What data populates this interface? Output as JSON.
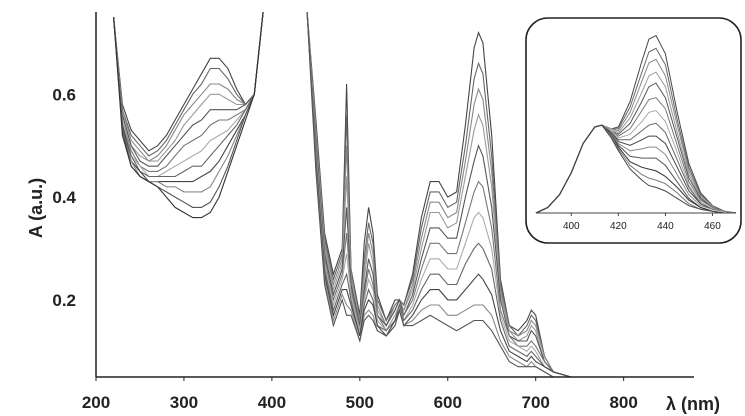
{
  "chart_data": [
    {
      "type": "line",
      "xlabel": "λ (nm)",
      "ylabel": "A (a.u.)",
      "xlim": [
        200,
        880
      ],
      "ylim": [
        0.05,
        0.76
      ],
      "x_ticks": [
        200,
        300,
        400,
        500,
        600,
        700,
        800
      ],
      "x_tick_labels": [
        "200",
        "300",
        "400",
        "500",
        "600",
        "700",
        "800"
      ],
      "y_ticks": [
        0.2,
        0.4,
        0.6
      ],
      "y_tick_labels": [
        "0.2",
        "0.4",
        "0.6"
      ],
      "grid": false,
      "line_color": "#555555",
      "uv_region": {
        "x": [
          220,
          230,
          240,
          250,
          260,
          270,
          280,
          290,
          300,
          310,
          320,
          330,
          340,
          350,
          360,
          370,
          380,
          390
        ],
        "curves": [
          [
            0.75,
            0.58,
            0.53,
            0.51,
            0.49,
            0.5,
            0.52,
            0.55,
            0.58,
            0.61,
            0.64,
            0.67,
            0.67,
            0.65,
            0.61,
            0.58,
            0.6,
            0.76
          ],
          [
            0.75,
            0.57,
            0.52,
            0.5,
            0.48,
            0.49,
            0.51,
            0.54,
            0.57,
            0.6,
            0.62,
            0.65,
            0.65,
            0.63,
            0.6,
            0.58,
            0.6,
            0.76
          ],
          [
            0.75,
            0.57,
            0.51,
            0.49,
            0.47,
            0.48,
            0.5,
            0.53,
            0.56,
            0.58,
            0.6,
            0.62,
            0.62,
            0.61,
            0.59,
            0.58,
            0.6,
            0.76
          ],
          [
            0.75,
            0.56,
            0.5,
            0.48,
            0.47,
            0.47,
            0.49,
            0.51,
            0.54,
            0.56,
            0.58,
            0.6,
            0.6,
            0.59,
            0.58,
            0.58,
            0.6,
            0.76
          ],
          [
            0.75,
            0.56,
            0.5,
            0.47,
            0.46,
            0.46,
            0.48,
            0.5,
            0.52,
            0.54,
            0.55,
            0.57,
            0.57,
            0.57,
            0.57,
            0.58,
            0.6,
            0.76
          ],
          [
            0.75,
            0.55,
            0.49,
            0.46,
            0.45,
            0.45,
            0.46,
            0.48,
            0.5,
            0.51,
            0.52,
            0.54,
            0.55,
            0.55,
            0.56,
            0.57,
            0.6,
            0.76
          ],
          [
            0.75,
            0.55,
            0.48,
            0.46,
            0.44,
            0.44,
            0.45,
            0.46,
            0.47,
            0.48,
            0.49,
            0.51,
            0.52,
            0.53,
            0.55,
            0.57,
            0.6,
            0.76
          ],
          [
            0.75,
            0.54,
            0.48,
            0.45,
            0.44,
            0.44,
            0.44,
            0.44,
            0.45,
            0.46,
            0.46,
            0.48,
            0.5,
            0.52,
            0.54,
            0.57,
            0.6,
            0.76
          ],
          [
            0.75,
            0.54,
            0.47,
            0.45,
            0.43,
            0.43,
            0.43,
            0.43,
            0.43,
            0.43,
            0.44,
            0.45,
            0.47,
            0.5,
            0.53,
            0.56,
            0.6,
            0.76
          ],
          [
            0.75,
            0.53,
            0.47,
            0.44,
            0.43,
            0.43,
            0.42,
            0.42,
            0.41,
            0.41,
            0.41,
            0.42,
            0.45,
            0.48,
            0.52,
            0.56,
            0.6,
            0.76
          ],
          [
            0.75,
            0.53,
            0.46,
            0.44,
            0.43,
            0.42,
            0.41,
            0.4,
            0.39,
            0.38,
            0.38,
            0.39,
            0.42,
            0.46,
            0.51,
            0.56,
            0.6,
            0.76
          ],
          [
            0.75,
            0.52,
            0.46,
            0.44,
            0.43,
            0.42,
            0.4,
            0.38,
            0.37,
            0.36,
            0.36,
            0.37,
            0.4,
            0.45,
            0.5,
            0.55,
            0.6,
            0.76
          ]
        ]
      },
      "vis_region": {
        "x": [
          440,
          450,
          460,
          470,
          480,
          485,
          490,
          500,
          505,
          510,
          515,
          520,
          530,
          540,
          545,
          550,
          560,
          570,
          580,
          590,
          600,
          610,
          620,
          630,
          635,
          640,
          650,
          660,
          670,
          680,
          690,
          695,
          700,
          710,
          720,
          740,
          760,
          800,
          840,
          860
        ],
        "curves": [
          [
            0.76,
            0.55,
            0.33,
            0.25,
            0.3,
            0.62,
            0.26,
            0.17,
            0.31,
            0.38,
            0.33,
            0.21,
            0.16,
            0.2,
            0.2,
            0.19,
            0.25,
            0.36,
            0.43,
            0.43,
            0.4,
            0.41,
            0.54,
            0.69,
            0.72,
            0.7,
            0.52,
            0.24,
            0.15,
            0.14,
            0.16,
            0.18,
            0.17,
            0.09,
            0.06,
            0.05,
            0.046,
            0.044,
            0.044,
            0.045
          ],
          [
            0.76,
            0.54,
            0.32,
            0.24,
            0.29,
            0.56,
            0.26,
            0.16,
            0.28,
            0.35,
            0.31,
            0.2,
            0.16,
            0.19,
            0.2,
            0.19,
            0.24,
            0.34,
            0.41,
            0.41,
            0.38,
            0.39,
            0.5,
            0.63,
            0.66,
            0.64,
            0.48,
            0.23,
            0.15,
            0.13,
            0.15,
            0.17,
            0.16,
            0.09,
            0.06,
            0.05,
            0.046,
            0.044,
            0.044,
            0.045
          ],
          [
            0.76,
            0.53,
            0.31,
            0.23,
            0.28,
            0.5,
            0.25,
            0.16,
            0.26,
            0.33,
            0.29,
            0.19,
            0.15,
            0.19,
            0.2,
            0.18,
            0.23,
            0.32,
            0.39,
            0.39,
            0.36,
            0.37,
            0.47,
            0.58,
            0.61,
            0.59,
            0.45,
            0.22,
            0.14,
            0.13,
            0.14,
            0.16,
            0.15,
            0.09,
            0.06,
            0.05,
            0.046,
            0.044,
            0.044,
            0.045
          ],
          [
            0.76,
            0.52,
            0.3,
            0.22,
            0.27,
            0.44,
            0.24,
            0.15,
            0.24,
            0.31,
            0.27,
            0.18,
            0.15,
            0.18,
            0.2,
            0.18,
            0.22,
            0.3,
            0.37,
            0.37,
            0.34,
            0.35,
            0.44,
            0.53,
            0.56,
            0.54,
            0.42,
            0.21,
            0.14,
            0.12,
            0.13,
            0.15,
            0.14,
            0.08,
            0.06,
            0.05,
            0.046,
            0.044,
            0.044,
            0.045
          ],
          [
            0.76,
            0.51,
            0.29,
            0.21,
            0.26,
            0.38,
            0.23,
            0.15,
            0.22,
            0.28,
            0.25,
            0.17,
            0.15,
            0.18,
            0.2,
            0.17,
            0.21,
            0.28,
            0.34,
            0.34,
            0.32,
            0.32,
            0.4,
            0.47,
            0.5,
            0.48,
            0.38,
            0.2,
            0.13,
            0.12,
            0.12,
            0.14,
            0.13,
            0.08,
            0.06,
            0.05,
            0.046,
            0.044,
            0.044,
            0.045
          ],
          [
            0.76,
            0.5,
            0.28,
            0.2,
            0.25,
            0.33,
            0.22,
            0.14,
            0.21,
            0.26,
            0.23,
            0.17,
            0.14,
            0.17,
            0.19,
            0.17,
            0.2,
            0.26,
            0.31,
            0.31,
            0.29,
            0.29,
            0.35,
            0.41,
            0.43,
            0.42,
            0.34,
            0.18,
            0.13,
            0.11,
            0.11,
            0.12,
            0.11,
            0.08,
            0.06,
            0.05,
            0.046,
            0.044,
            0.044,
            0.045
          ],
          [
            0.76,
            0.49,
            0.27,
            0.19,
            0.24,
            0.29,
            0.21,
            0.14,
            0.2,
            0.24,
            0.22,
            0.16,
            0.14,
            0.17,
            0.19,
            0.16,
            0.19,
            0.24,
            0.28,
            0.28,
            0.26,
            0.26,
            0.31,
            0.36,
            0.37,
            0.36,
            0.3,
            0.17,
            0.12,
            0.11,
            0.1,
            0.11,
            0.1,
            0.07,
            0.06,
            0.05,
            0.046,
            0.044,
            0.044,
            0.045
          ],
          [
            0.76,
            0.48,
            0.26,
            0.18,
            0.23,
            0.25,
            0.2,
            0.13,
            0.19,
            0.22,
            0.2,
            0.15,
            0.14,
            0.16,
            0.19,
            0.16,
            0.18,
            0.22,
            0.25,
            0.25,
            0.23,
            0.23,
            0.27,
            0.3,
            0.31,
            0.3,
            0.26,
            0.16,
            0.11,
            0.1,
            0.09,
            0.1,
            0.09,
            0.07,
            0.06,
            0.05,
            0.046,
            0.044,
            0.044,
            0.045
          ],
          [
            0.76,
            0.47,
            0.25,
            0.17,
            0.22,
            0.22,
            0.19,
            0.13,
            0.18,
            0.2,
            0.19,
            0.15,
            0.13,
            0.16,
            0.18,
            0.15,
            0.17,
            0.2,
            0.22,
            0.22,
            0.2,
            0.2,
            0.22,
            0.24,
            0.25,
            0.24,
            0.21,
            0.14,
            0.1,
            0.09,
            0.08,
            0.09,
            0.08,
            0.07,
            0.06,
            0.05,
            0.046,
            0.044,
            0.044,
            0.045
          ],
          [
            0.76,
            0.46,
            0.24,
            0.16,
            0.21,
            0.19,
            0.18,
            0.12,
            0.17,
            0.18,
            0.17,
            0.14,
            0.13,
            0.15,
            0.18,
            0.15,
            0.16,
            0.18,
            0.19,
            0.19,
            0.17,
            0.17,
            0.18,
            0.19,
            0.19,
            0.19,
            0.17,
            0.12,
            0.09,
            0.08,
            0.07,
            0.08,
            0.07,
            0.06,
            0.05,
            0.05,
            0.046,
            0.044,
            0.044,
            0.045
          ],
          [
            0.76,
            0.45,
            0.23,
            0.15,
            0.2,
            0.17,
            0.17,
            0.12,
            0.16,
            0.17,
            0.16,
            0.14,
            0.13,
            0.15,
            0.18,
            0.15,
            0.15,
            0.16,
            0.17,
            0.16,
            0.15,
            0.14,
            0.15,
            0.16,
            0.16,
            0.16,
            0.14,
            0.11,
            0.08,
            0.07,
            0.07,
            0.07,
            0.07,
            0.06,
            0.05,
            0.05,
            0.046,
            0.044,
            0.044,
            0.045
          ]
        ]
      }
    },
    {
      "type": "line",
      "xlabel": "",
      "ylabel": "",
      "xlim": [
        385,
        470
      ],
      "ylim": [
        0,
        1.0
      ],
      "x_ticks": [
        400,
        420,
        440,
        460
      ],
      "x_tick_labels": [
        "400",
        "420",
        "440",
        "460"
      ],
      "grid": false,
      "line_color": "#444444",
      "x": [
        385,
        390,
        395,
        400,
        405,
        410,
        413,
        417,
        420,
        425,
        430,
        433,
        436,
        440,
        445,
        450,
        455,
        460,
        465,
        470
      ],
      "curves": [
        [
          0.0,
          0.03,
          0.1,
          0.22,
          0.38,
          0.47,
          0.48,
          0.46,
          0.47,
          0.61,
          0.83,
          0.95,
          0.97,
          0.87,
          0.55,
          0.27,
          0.11,
          0.04,
          0.01,
          0.0
        ],
        [
          0.0,
          0.03,
          0.1,
          0.22,
          0.38,
          0.47,
          0.48,
          0.46,
          0.46,
          0.58,
          0.77,
          0.88,
          0.9,
          0.81,
          0.51,
          0.25,
          0.1,
          0.04,
          0.01,
          0.0
        ],
        [
          0.0,
          0.03,
          0.1,
          0.22,
          0.38,
          0.47,
          0.48,
          0.46,
          0.45,
          0.55,
          0.72,
          0.82,
          0.84,
          0.75,
          0.48,
          0.23,
          0.09,
          0.03,
          0.01,
          0.0
        ],
        [
          0.0,
          0.03,
          0.1,
          0.22,
          0.38,
          0.47,
          0.48,
          0.46,
          0.44,
          0.52,
          0.66,
          0.75,
          0.77,
          0.69,
          0.44,
          0.21,
          0.08,
          0.03,
          0.01,
          0.0
        ],
        [
          0.0,
          0.03,
          0.1,
          0.22,
          0.38,
          0.47,
          0.48,
          0.45,
          0.43,
          0.49,
          0.61,
          0.69,
          0.71,
          0.63,
          0.41,
          0.19,
          0.08,
          0.03,
          0.01,
          0.0
        ],
        [
          0.0,
          0.03,
          0.1,
          0.22,
          0.38,
          0.47,
          0.48,
          0.45,
          0.42,
          0.46,
          0.56,
          0.62,
          0.63,
          0.57,
          0.37,
          0.17,
          0.07,
          0.03,
          0.01,
          0.0
        ],
        [
          0.0,
          0.03,
          0.1,
          0.22,
          0.38,
          0.47,
          0.48,
          0.45,
          0.41,
          0.43,
          0.5,
          0.55,
          0.56,
          0.5,
          0.33,
          0.15,
          0.06,
          0.02,
          0.01,
          0.0
        ],
        [
          0.0,
          0.03,
          0.1,
          0.22,
          0.38,
          0.47,
          0.48,
          0.44,
          0.4,
          0.4,
          0.45,
          0.48,
          0.49,
          0.44,
          0.29,
          0.14,
          0.05,
          0.02,
          0.01,
          0.0
        ],
        [
          0.0,
          0.03,
          0.1,
          0.22,
          0.38,
          0.47,
          0.48,
          0.44,
          0.39,
          0.37,
          0.4,
          0.42,
          0.42,
          0.38,
          0.25,
          0.12,
          0.05,
          0.02,
          0.01,
          0.0
        ],
        [
          0.0,
          0.03,
          0.1,
          0.22,
          0.38,
          0.47,
          0.48,
          0.43,
          0.38,
          0.34,
          0.35,
          0.36,
          0.36,
          0.32,
          0.21,
          0.1,
          0.04,
          0.02,
          0.01,
          0.0
        ],
        [
          0.0,
          0.03,
          0.1,
          0.22,
          0.38,
          0.47,
          0.48,
          0.43,
          0.37,
          0.31,
          0.3,
          0.3,
          0.3,
          0.26,
          0.17,
          0.08,
          0.03,
          0.01,
          0.0,
          0.0
        ],
        [
          0.0,
          0.03,
          0.1,
          0.22,
          0.38,
          0.47,
          0.48,
          0.42,
          0.36,
          0.28,
          0.25,
          0.24,
          0.23,
          0.2,
          0.14,
          0.07,
          0.03,
          0.01,
          0.0,
          0.0
        ],
        [
          0.0,
          0.03,
          0.1,
          0.22,
          0.38,
          0.47,
          0.48,
          0.42,
          0.35,
          0.26,
          0.21,
          0.19,
          0.18,
          0.16,
          0.11,
          0.05,
          0.02,
          0.01,
          0.0,
          0.0
        ],
        [
          0.0,
          0.03,
          0.1,
          0.22,
          0.38,
          0.47,
          0.48,
          0.41,
          0.34,
          0.24,
          0.18,
          0.15,
          0.14,
          0.12,
          0.08,
          0.04,
          0.02,
          0.01,
          0.0,
          0.0
        ]
      ]
    }
  ]
}
